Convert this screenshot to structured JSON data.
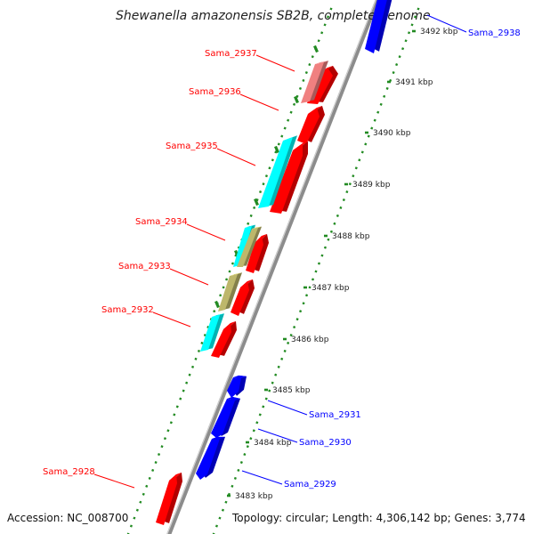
{
  "title": "Shewanella amazonensis SB2B, complete genome",
  "accession": "Accession: NC_008700",
  "topology": "Topology: circular; Length: 4,306,142 bp; Genes: 3,774",
  "colors": {
    "forward_gene": "#ff0000",
    "reverse_gene": "#0000ff",
    "backbone": "#8c8c8c",
    "dots": "#228b22",
    "cyan_feature": "#00ffff",
    "tan_feature": "#bdb76b",
    "pink_feature": "#f08080"
  },
  "kbp_ticks": [
    "3483 kbp",
    "3484 kbp",
    "3485 kbp",
    "3486 kbp",
    "3487 kbp",
    "3488 kbp",
    "3489 kbp",
    "3490 kbp",
    "3491 kbp",
    "3492 kbp"
  ],
  "gene_labels_left": [
    "Sama_2937",
    "Sama_2936",
    "Sama_2935",
    "Sama_2934",
    "Sama_2933",
    "Sama_2932",
    "Sama_2928"
  ],
  "gene_labels_right": [
    "Sama_2938",
    "Sama_2931",
    "Sama_2930",
    "Sama_2929"
  ]
}
